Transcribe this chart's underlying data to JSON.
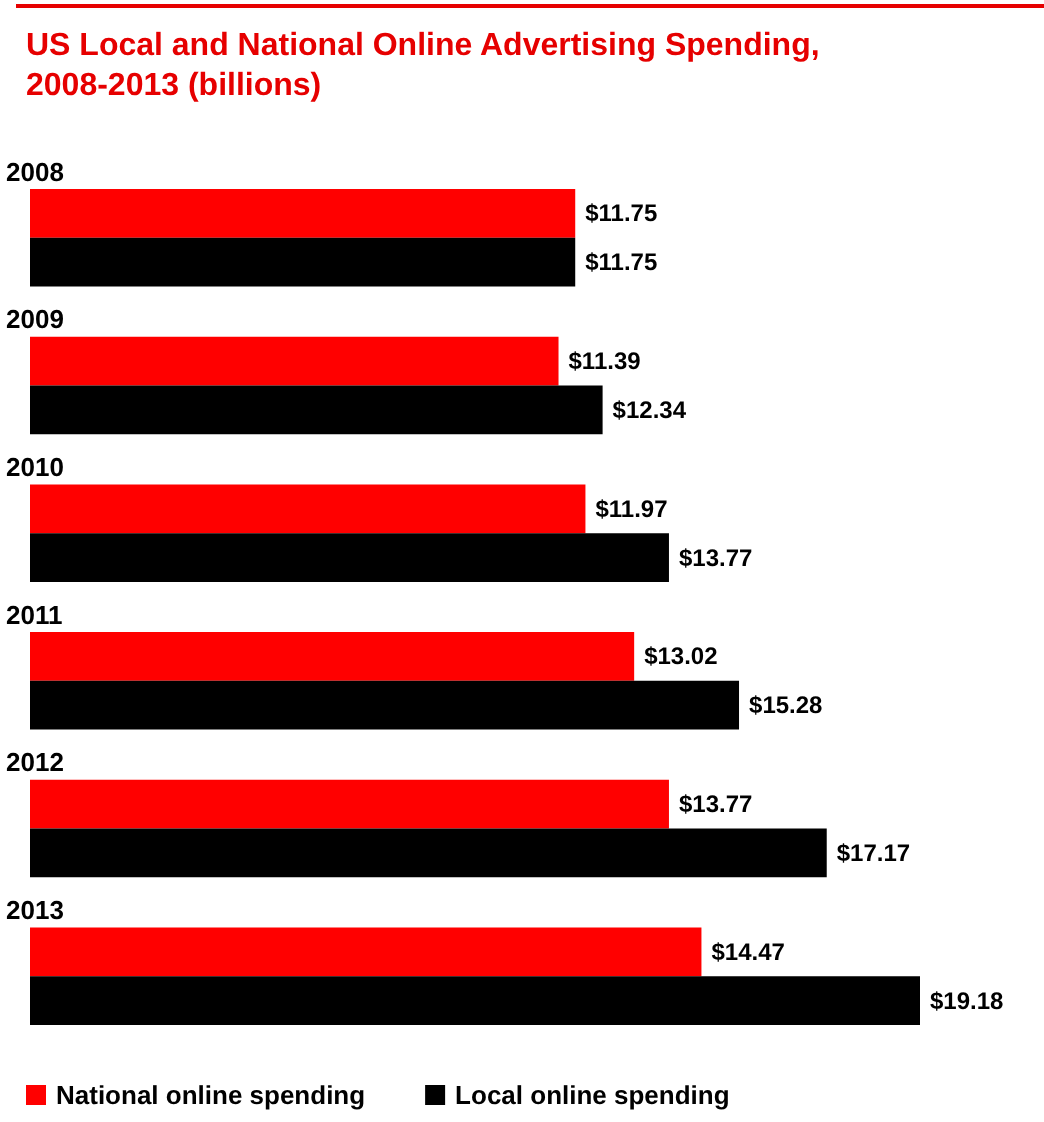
{
  "chart_data": {
    "type": "bar",
    "orientation": "horizontal",
    "title": "US Local and National Online Advertising Spending,\n2008-2013 (billions)",
    "categories": [
      "2008",
      "2009",
      "2010",
      "2011",
      "2012",
      "2013"
    ],
    "series": [
      {
        "name": "National online spending",
        "color": "#ff0000",
        "values": [
          11.75,
          11.39,
          11.97,
          13.02,
          13.77,
          14.47
        ],
        "value_labels": [
          "$11.75",
          "$11.39",
          "$11.97",
          "$13.02",
          "$13.77",
          "$14.47"
        ]
      },
      {
        "name": "Local online spending",
        "color": "#000000",
        "values": [
          11.75,
          12.34,
          13.77,
          15.28,
          17.17,
          19.18
        ],
        "value_labels": [
          "$11.75",
          "$12.34",
          "$13.77",
          "$15.28",
          "$17.17",
          "$19.18"
        ]
      }
    ],
    "legend": "bottom left",
    "grid": false
  }
}
